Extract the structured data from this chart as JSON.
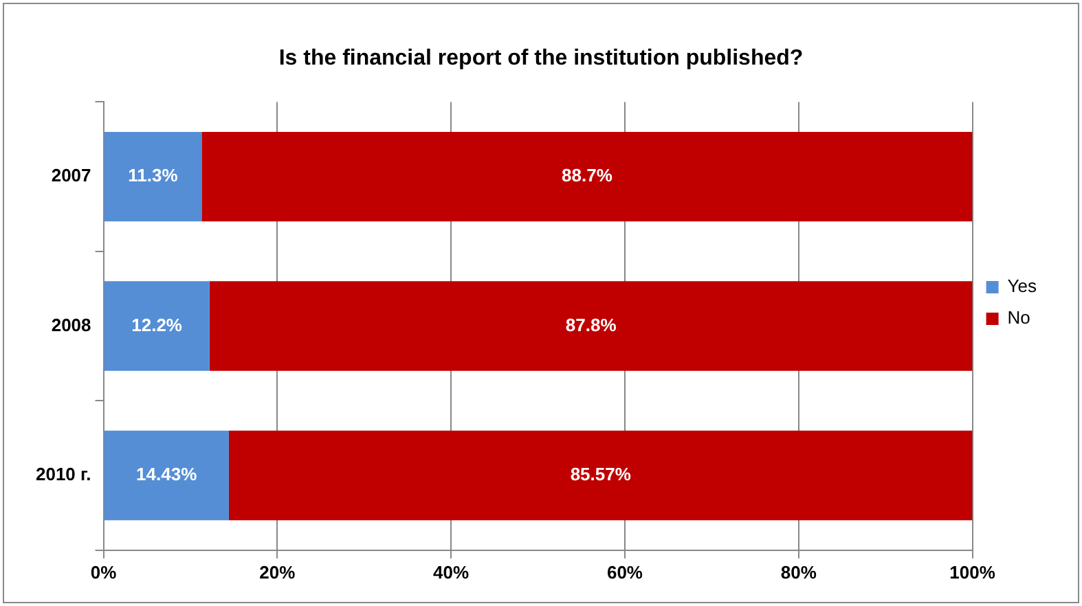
{
  "chart_data": {
    "type": "bar",
    "orientation": "horizontal",
    "stacked": true,
    "title": "Is the financial report of the institution published?",
    "categories": [
      "2007",
      "2008",
      "2010 г."
    ],
    "series": [
      {
        "name": "Yes",
        "color": "#558ed5",
        "values": [
          11.3,
          12.2,
          14.43
        ],
        "value_labels": [
          "11.3%",
          "12.2%",
          "14.43%"
        ]
      },
      {
        "name": "No",
        "color": "#c00000",
        "values": [
          88.7,
          87.8,
          85.57
        ],
        "value_labels": [
          "88.7%",
          "87.8%",
          "85.57%"
        ]
      }
    ],
    "xlim": [
      0,
      100
    ],
    "xticks": [
      {
        "value": 0,
        "label": "0%"
      },
      {
        "value": 20,
        "label": "20%"
      },
      {
        "value": 40,
        "label": "40%"
      },
      {
        "value": 60,
        "label": "60%"
      },
      {
        "value": 80,
        "label": "80%"
      },
      {
        "value": 100,
        "label": "100%"
      }
    ],
    "grid": "x",
    "legend": "right"
  }
}
